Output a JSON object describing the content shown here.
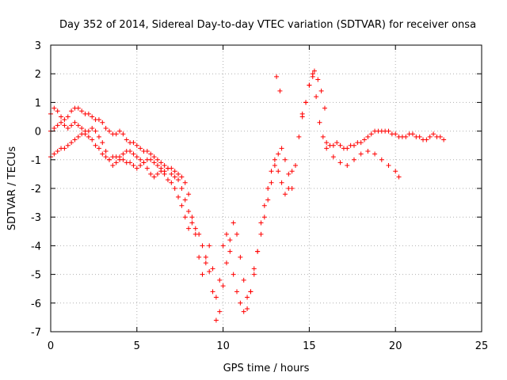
{
  "chart_data": {
    "type": "scatter",
    "title": "Day 352 of 2014, Sidereal Day-to-day VTEC variation (SDTVAR) for receiver onsa",
    "xlabel": "GPS time / hours",
    "ylabel": "SDTVAR / TECUs",
    "xlim": [
      0,
      25
    ],
    "ylim": [
      -7,
      3
    ],
    "x_ticks": [
      "0",
      "5",
      "10",
      "15",
      "20",
      "25"
    ],
    "y_ticks": [
      "3",
      "2",
      "1",
      "0",
      "-1",
      "-2",
      "-3",
      "-4",
      "-5",
      "-6",
      "-7"
    ],
    "grid": true,
    "marker": "+",
    "series_color": "#ff0000",
    "series": [
      {
        "name": "SDTVAR",
        "x": [
          0.0,
          0.2,
          0.4,
          0.6,
          0.8,
          1.0,
          1.2,
          1.4,
          1.6,
          1.8,
          2.0,
          2.2,
          2.4,
          2.6,
          2.8,
          3.0,
          3.2,
          3.4,
          3.6,
          3.8,
          4.0,
          4.2,
          4.4,
          4.6,
          4.8,
          5.0,
          5.2,
          5.4,
          5.6,
          5.8,
          6.0,
          6.2,
          6.4,
          6.6,
          6.8,
          7.0,
          7.2,
          7.4,
          7.6,
          7.8,
          8.0,
          8.2,
          8.4,
          8.6,
          8.8,
          9.0,
          9.2,
          9.4,
          9.6,
          9.8,
          10.0,
          10.2,
          10.4,
          10.6,
          10.8,
          11.0,
          11.2,
          11.4,
          11.6,
          11.8,
          12.0,
          12.2,
          12.4,
          12.6,
          12.8,
          13.0,
          13.2,
          13.4,
          13.6,
          13.8,
          14.0,
          14.2,
          14.4,
          14.6,
          14.8,
          15.0,
          15.2,
          15.4,
          15.6,
          15.8,
          16.0,
          16.2,
          16.4,
          16.6,
          16.8,
          17.0,
          17.2,
          17.4,
          17.6,
          17.8,
          18.0,
          18.2,
          18.4,
          18.6,
          18.8,
          19.0,
          19.2,
          19.4,
          19.6,
          19.8,
          20.0,
          20.2,
          20.4,
          20.6,
          20.8,
          21.0,
          21.2,
          21.4,
          21.6,
          21.8,
          22.0,
          22.2,
          22.4,
          22.6,
          22.8,
          0.0,
          0.2,
          0.4,
          0.6,
          0.8,
          1.0,
          1.2,
          1.4,
          1.6,
          1.8,
          2.0,
          2.2,
          2.4,
          2.6,
          2.8,
          3.0,
          3.2,
          3.4,
          3.6,
          3.8,
          4.0,
          4.2,
          4.4,
          4.6,
          4.8,
          5.0,
          5.2,
          5.4,
          5.6,
          5.8,
          6.0,
          6.2,
          6.4,
          6.6,
          6.8,
          7.0,
          7.2,
          7.4,
          7.6,
          7.8,
          8.0,
          0.0,
          0.2,
          0.4,
          0.6,
          0.8,
          1.0,
          1.2,
          1.4,
          1.6,
          1.8,
          2.0,
          2.2,
          2.4,
          2.6,
          2.8,
          3.0,
          3.2,
          3.4,
          3.6,
          3.8,
          4.0,
          4.2,
          4.4,
          4.6,
          4.8,
          5.0,
          5.2,
          5.4,
          5.6,
          5.8,
          6.0,
          6.2,
          6.4,
          6.6,
          6.8,
          7.0,
          7.2,
          7.4,
          7.6,
          7.8,
          8.0,
          8.2,
          8.4,
          8.6,
          8.8,
          9.0,
          9.2,
          9.4,
          9.6,
          9.8,
          10.0,
          10.2,
          10.4,
          10.6,
          10.8,
          11.0,
          11.2,
          11.4,
          11.6,
          11.8,
          12.0,
          12.2,
          12.4,
          12.6,
          12.8,
          13.0,
          13.2,
          13.4,
          13.6,
          13.8,
          14.0,
          13.1,
          13.3,
          14.6,
          14.8,
          15.0,
          15.2,
          15.3,
          15.5,
          15.7,
          15.9,
          16.0,
          16.4,
          16.8,
          17.2,
          17.6,
          18.0,
          18.4,
          18.8,
          19.2,
          19.6,
          20.0,
          20.2
        ],
        "y": [
          0.6,
          0.8,
          0.7,
          0.5,
          0.4,
          0.5,
          0.7,
          0.8,
          0.8,
          0.7,
          0.6,
          0.6,
          0.5,
          0.4,
          0.4,
          0.3,
          0.1,
          0.0,
          -0.1,
          -0.1,
          0.0,
          -0.1,
          -0.3,
          -0.4,
          -0.4,
          -0.5,
          -0.6,
          -0.7,
          -0.7,
          -0.8,
          -0.9,
          -1.0,
          -1.1,
          -1.2,
          -1.3,
          -1.5,
          -1.6,
          -1.7,
          -2.0,
          -2.4,
          -2.8,
          -3.2,
          -3.4,
          -3.6,
          -4.0,
          -4.4,
          -4.9,
          -5.6,
          -6.6,
          -5.2,
          -4.0,
          -3.6,
          -4.2,
          -5.0,
          -5.6,
          -6.0,
          -6.3,
          -6.2,
          -5.6,
          -4.8,
          -4.2,
          -3.6,
          -3.0,
          -2.4,
          -1.8,
          -1.2,
          -0.8,
          -0.6,
          -1.0,
          -1.5,
          -2.0,
          -1.2,
          -0.2,
          0.5,
          1.0,
          1.6,
          1.9,
          1.2,
          0.3,
          -0.2,
          -0.4,
          -0.5,
          -0.5,
          -0.4,
          -0.5,
          -0.6,
          -0.6,
          -0.5,
          -0.5,
          -0.4,
          -0.4,
          -0.3,
          -0.2,
          -0.1,
          0.0,
          0.0,
          0.0,
          0.0,
          0.0,
          -0.1,
          -0.1,
          -0.2,
          -0.2,
          -0.2,
          -0.1,
          -0.1,
          -0.2,
          -0.2,
          -0.3,
          -0.3,
          -0.2,
          -0.1,
          -0.2,
          -0.2,
          -0.3,
          -0.9,
          -0.8,
          -0.7,
          -0.6,
          -0.6,
          -0.5,
          -0.4,
          -0.3,
          -0.2,
          -0.1,
          0.0,
          0.0,
          0.1,
          0.0,
          -0.2,
          -0.4,
          -0.7,
          -1.0,
          -1.2,
          -1.1,
          -0.9,
          -0.8,
          -0.7,
          -0.7,
          -0.8,
          -0.9,
          -1.0,
          -1.1,
          -1.3,
          -1.5,
          -1.6,
          -1.5,
          -1.4,
          -1.5,
          -1.7,
          -1.8,
          -2.0,
          -2.3,
          -2.6,
          -3.0,
          -3.4,
          0.0,
          0.1,
          0.2,
          0.3,
          0.2,
          0.1,
          0.2,
          0.3,
          0.2,
          0.1,
          -0.1,
          -0.2,
          -0.3,
          -0.5,
          -0.6,
          -0.8,
          -0.9,
          -1.0,
          -0.9,
          -0.9,
          -1.0,
          -1.0,
          -1.1,
          -1.1,
          -1.2,
          -1.3,
          -1.2,
          -1.1,
          -1.0,
          -1.0,
          -1.1,
          -1.2,
          -1.3,
          -1.4,
          -1.3,
          -1.3,
          -1.4,
          -1.5,
          -1.6,
          -1.8,
          -2.2,
          -3.0,
          -3.6,
          -4.4,
          -5.0,
          -4.6,
          -4.0,
          -4.8,
          -5.8,
          -6.3,
          -5.4,
          -4.6,
          -3.8,
          -3.2,
          -3.6,
          -4.4,
          -5.2,
          -5.8,
          -5.6,
          -5.0,
          -4.2,
          -3.2,
          -2.6,
          -2.0,
          -1.4,
          -1.0,
          -1.4,
          -1.8,
          -2.2,
          -2.0,
          -1.4,
          1.9,
          1.4,
          0.6,
          1.0,
          1.6,
          2.0,
          2.1,
          1.8,
          1.4,
          0.8,
          -0.6,
          -0.9,
          -1.1,
          -1.2,
          -1.0,
          -0.8,
          -0.7,
          -0.8,
          -1.0,
          -1.2,
          -1.4,
          -1.6
        ]
      }
    ]
  }
}
